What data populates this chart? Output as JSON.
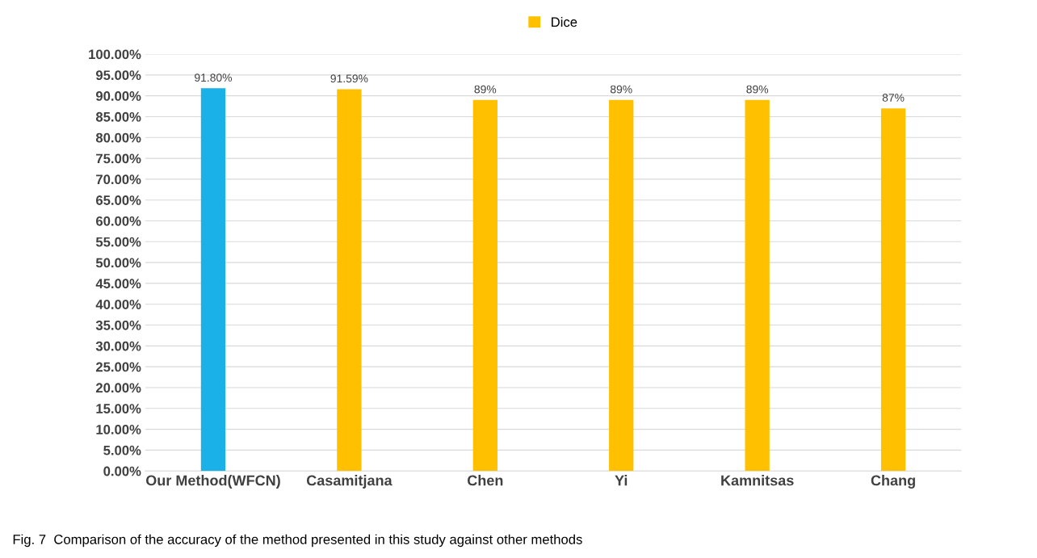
{
  "chart_data": {
    "type": "bar",
    "categories": [
      "Our Method(WFCN)",
      "Casamitjana",
      "Chen",
      "Yi",
      "Kamnitsas",
      "Chang"
    ],
    "series": [
      {
        "name": "Dice",
        "color": "#ffc000",
        "colors": [
          "#1ab0e8",
          "#ffc000",
          "#ffc000",
          "#ffc000",
          "#ffc000",
          "#ffc000"
        ],
        "values": [
          91.8,
          91.59,
          89,
          89,
          89,
          87
        ],
        "value_labels": [
          "91.80%",
          "91.59%",
          "89%",
          "89%",
          "89%",
          "87%"
        ]
      }
    ],
    "ylim": [
      0,
      100
    ],
    "yticks": [
      {
        "value": 0,
        "label": "0.00%"
      },
      {
        "value": 5,
        "label": "5.00%"
      },
      {
        "value": 10,
        "label": "10.00%"
      },
      {
        "value": 15,
        "label": "15.00%"
      },
      {
        "value": 20,
        "label": "20.00%"
      },
      {
        "value": 25,
        "label": "25.00%"
      },
      {
        "value": 30,
        "label": "30.00%"
      },
      {
        "value": 35,
        "label": "35.00%"
      },
      {
        "value": 40,
        "label": "40.00%"
      },
      {
        "value": 45,
        "label": "45.00%"
      },
      {
        "value": 50,
        "label": "50.00%"
      },
      {
        "value": 55,
        "label": "55.00%"
      },
      {
        "value": 60,
        "label": "60.00%"
      },
      {
        "value": 65,
        "label": "65.00%"
      },
      {
        "value": 70,
        "label": "70.00%"
      },
      {
        "value": 75,
        "label": "75.00%"
      },
      {
        "value": 80,
        "label": "80.00%"
      },
      {
        "value": 85,
        "label": "85.00%"
      },
      {
        "value": 90,
        "label": "90.00%"
      },
      {
        "value": 95,
        "label": "95.00%"
      },
      {
        "value": 100,
        "label": "100.00%"
      }
    ],
    "grid": "y",
    "legend": "top",
    "annotations": [
      "Fig. 7  Comparison of the accuracy of the method presented in this study against other methods"
    ]
  }
}
